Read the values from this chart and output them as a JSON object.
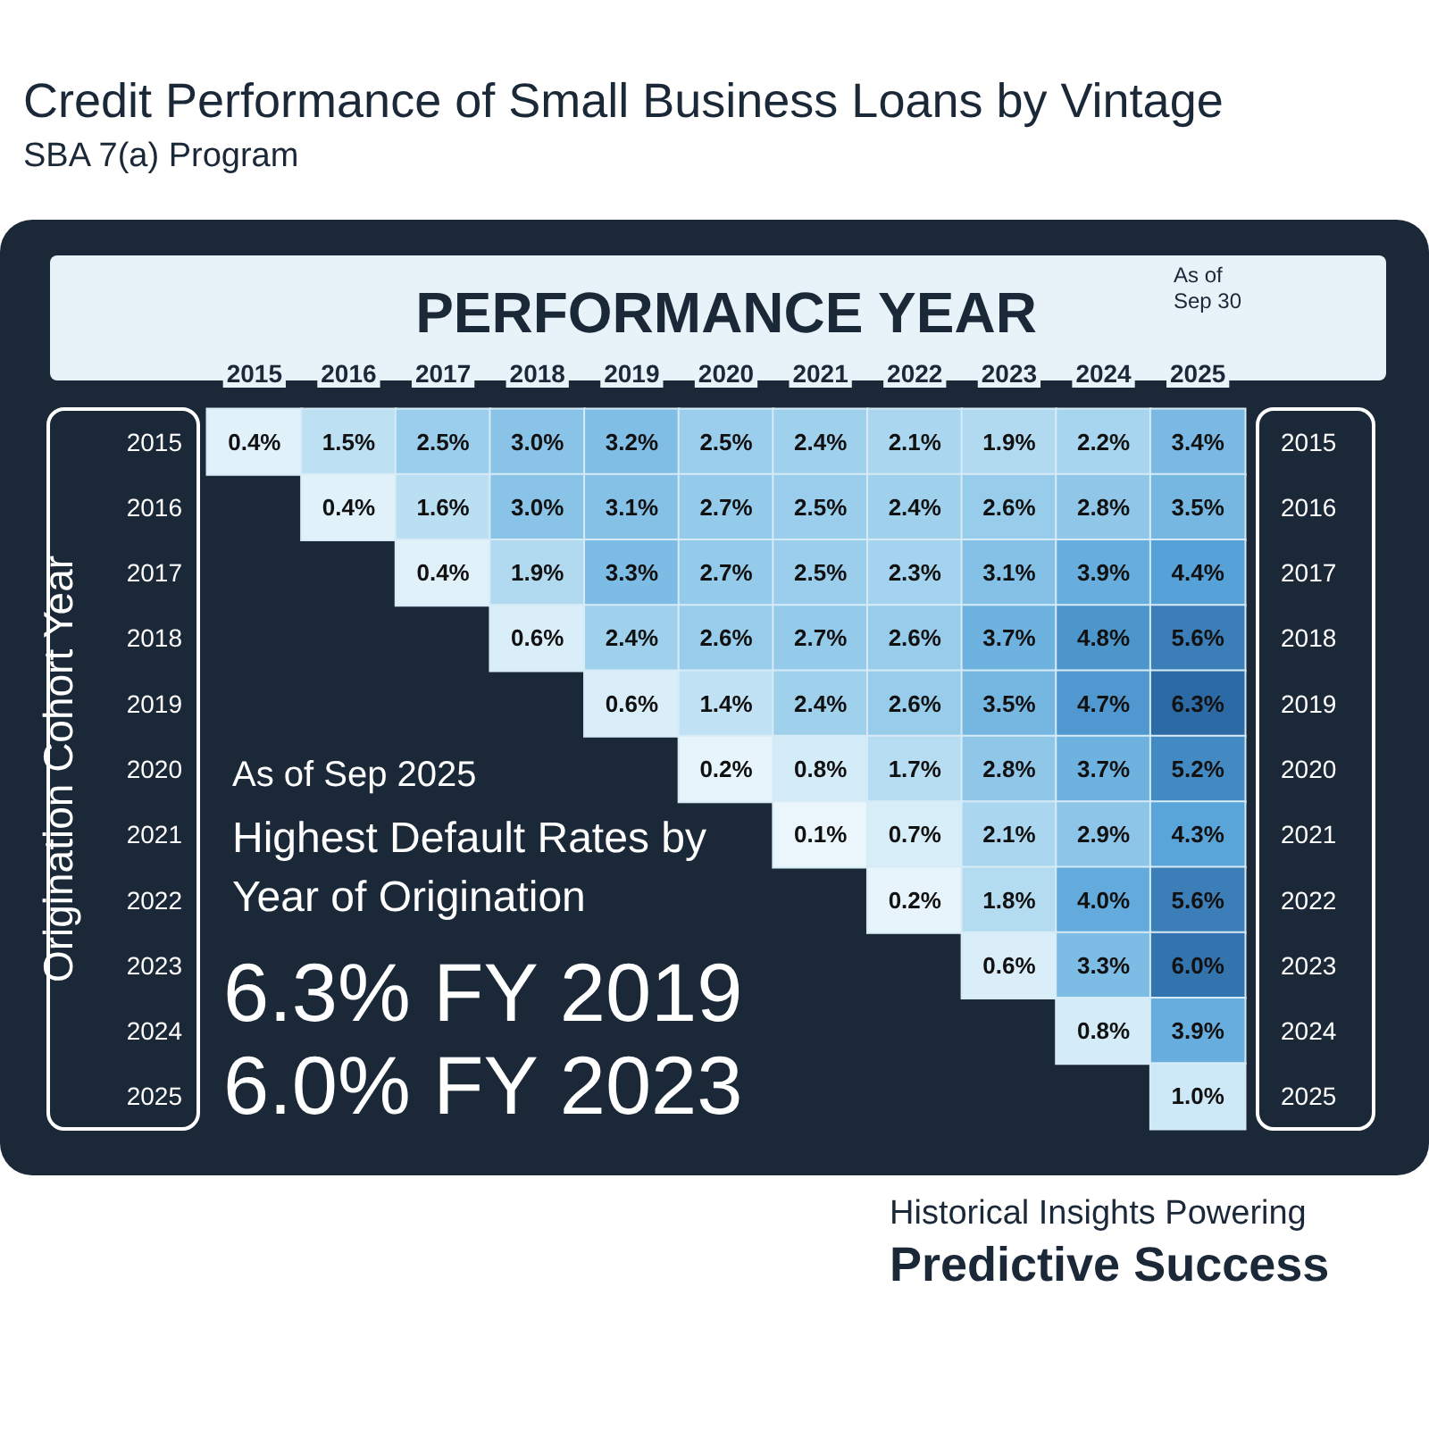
{
  "chart_data": {
    "type": "heatmap",
    "title": "Credit Performance of Small Business Loans by Vintage",
    "subtitle": "SBA 7(a) Program",
    "xlabel": "PERFORMANCE YEAR",
    "ylabel": "Origination Cohort Year",
    "categories": [
      "2015",
      "2016",
      "2017",
      "2018",
      "2019",
      "2020",
      "2021",
      "2022",
      "2023",
      "2024",
      "2025"
    ],
    "y_categories": [
      "2015",
      "2016",
      "2017",
      "2018",
      "2019",
      "2020",
      "2021",
      "2022",
      "2023",
      "2024",
      "2025"
    ],
    "y2_categories": [
      "2015",
      "2016",
      "2017",
      "2018",
      "2019",
      "2020",
      "2021",
      "2022",
      "2023",
      "2024",
      "2025"
    ],
    "cells": [
      [
        0.4,
        1.5,
        2.5,
        3.0,
        3.2,
        2.5,
        2.4,
        2.1,
        1.9,
        2.2,
        3.4
      ],
      [
        null,
        0.4,
        1.6,
        3.0,
        3.1,
        2.7,
        2.5,
        2.4,
        2.6,
        2.8,
        3.5
      ],
      [
        null,
        null,
        0.4,
        1.9,
        3.3,
        2.7,
        2.5,
        2.3,
        3.1,
        3.9,
        4.4
      ],
      [
        null,
        null,
        null,
        0.6,
        2.4,
        2.6,
        2.7,
        2.6,
        3.7,
        4.8,
        5.6
      ],
      [
        null,
        null,
        null,
        null,
        0.6,
        1.4,
        2.4,
        2.6,
        3.5,
        4.7,
        6.3
      ],
      [
        null,
        null,
        null,
        null,
        null,
        0.2,
        0.8,
        1.7,
        2.8,
        3.7,
        5.2
      ],
      [
        null,
        null,
        null,
        null,
        null,
        null,
        0.1,
        0.7,
        2.1,
        2.9,
        4.3
      ],
      [
        null,
        null,
        null,
        null,
        null,
        null,
        null,
        0.2,
        1.8,
        4.0,
        5.6
      ],
      [
        null,
        null,
        null,
        null,
        null,
        null,
        null,
        null,
        0.6,
        3.3,
        6.0
      ],
      [
        null,
        null,
        null,
        null,
        null,
        null,
        null,
        null,
        null,
        0.8,
        3.9
      ],
      [
        null,
        null,
        null,
        null,
        null,
        null,
        null,
        null,
        null,
        null,
        1.0
      ]
    ],
    "cell_labels": [
      [
        "0.4%",
        "1.5%",
        "2.5%",
        "3.0%",
        "3.2%",
        "2.5%",
        "2.4%",
        "2.1%",
        "1.9%",
        "2.2%",
        "3.4%"
      ],
      [
        null,
        "0.4%",
        "1.6%",
        "3.0%",
        "3.1%",
        "2.7%",
        "2.5%",
        "2.4%",
        "2.6%",
        "2.8%",
        "3.5%"
      ],
      [
        null,
        null,
        "0.4%",
        "1.9%",
        "3.3%",
        "2.7%",
        "2.5%",
        "2.3%",
        "3.1%",
        "3.9%",
        "4.4%"
      ],
      [
        null,
        null,
        null,
        "0.6%",
        "2.4%",
        "2.6%",
        "2.7%",
        "2.6%",
        "3.7%",
        "4.8%",
        "5.6%"
      ],
      [
        null,
        null,
        null,
        null,
        "0.6%",
        "1.4%",
        "2.4%",
        "2.6%",
        "3.5%",
        "4.7%",
        "6.3%"
      ],
      [
        null,
        null,
        null,
        null,
        null,
        "0.2%",
        "0.8%",
        "1.7%",
        "2.8%",
        "3.7%",
        "5.2%"
      ],
      [
        null,
        null,
        null,
        null,
        null,
        null,
        "0.1%",
        "0.7%",
        "2.1%",
        "2.9%",
        "4.3%"
      ],
      [
        null,
        null,
        null,
        null,
        null,
        null,
        null,
        "0.2%",
        "1.8%",
        "4.0%",
        "5.6%"
      ],
      [
        null,
        null,
        null,
        null,
        null,
        null,
        null,
        null,
        "0.6%",
        "3.3%",
        "6.0%"
      ],
      [
        null,
        null,
        null,
        null,
        null,
        null,
        null,
        null,
        null,
        "0.8%",
        "3.9%"
      ],
      [
        null,
        null,
        null,
        null,
        null,
        null,
        null,
        null,
        null,
        null,
        "1.0%"
      ]
    ],
    "annotations": [
      "As of Sep 30",
      "As of Sep 2025",
      "Highest Default Rates by Year of Origination",
      "6.3% FY 2019",
      "6.0% FY 2023",
      "Historical Insights Powering",
      "Predictive Success"
    ]
  }
}
